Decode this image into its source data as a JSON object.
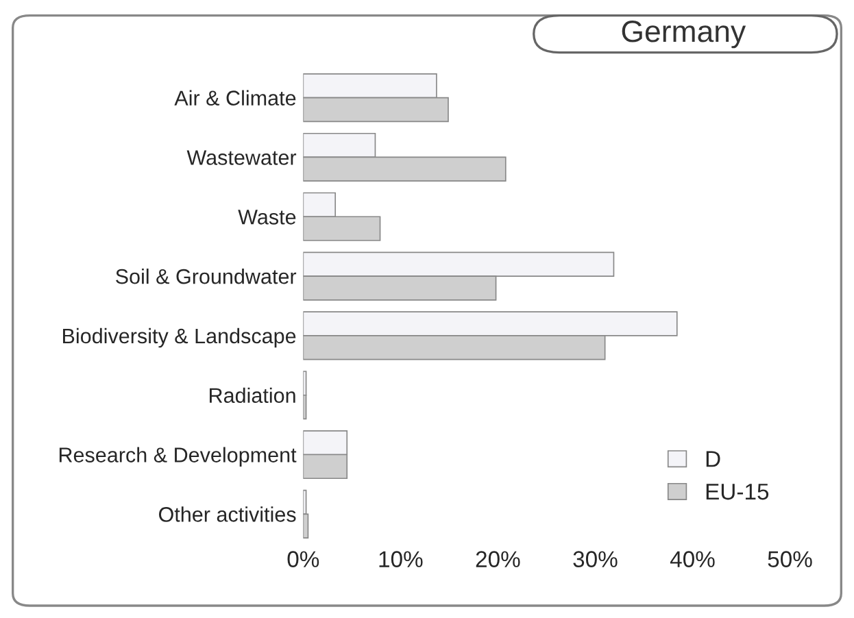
{
  "chart_data": {
    "type": "bar",
    "orientation": "horizontal",
    "title": "Germany",
    "categories": [
      "Air & Climate",
      "Wastewater",
      "Waste",
      "Soil & Groundwater",
      "Biodiversity & Landscape",
      "Radiation",
      "Research & Development",
      "Other activities"
    ],
    "series": [
      {
        "name": "D",
        "color": "#f4f4f8",
        "values": [
          13.7,
          7.4,
          3.3,
          31.9,
          38.4,
          0.3,
          4.5,
          0.3
        ]
      },
      {
        "name": "EU-15",
        "color": "#cfcfcf",
        "values": [
          14.9,
          20.8,
          7.9,
          19.8,
          31.0,
          0.3,
          4.5,
          0.5
        ]
      }
    ],
    "xlim": [
      0,
      50
    ],
    "xticks": [
      {
        "value": 0,
        "label": "0%"
      },
      {
        "value": 10,
        "label": "10%"
      },
      {
        "value": 20,
        "label": "20%"
      },
      {
        "value": 30,
        "label": "30%"
      },
      {
        "value": 40,
        "label": "40%"
      },
      {
        "value": 50,
        "label": "50%"
      }
    ],
    "grid": false,
    "legend": "bottom right"
  }
}
